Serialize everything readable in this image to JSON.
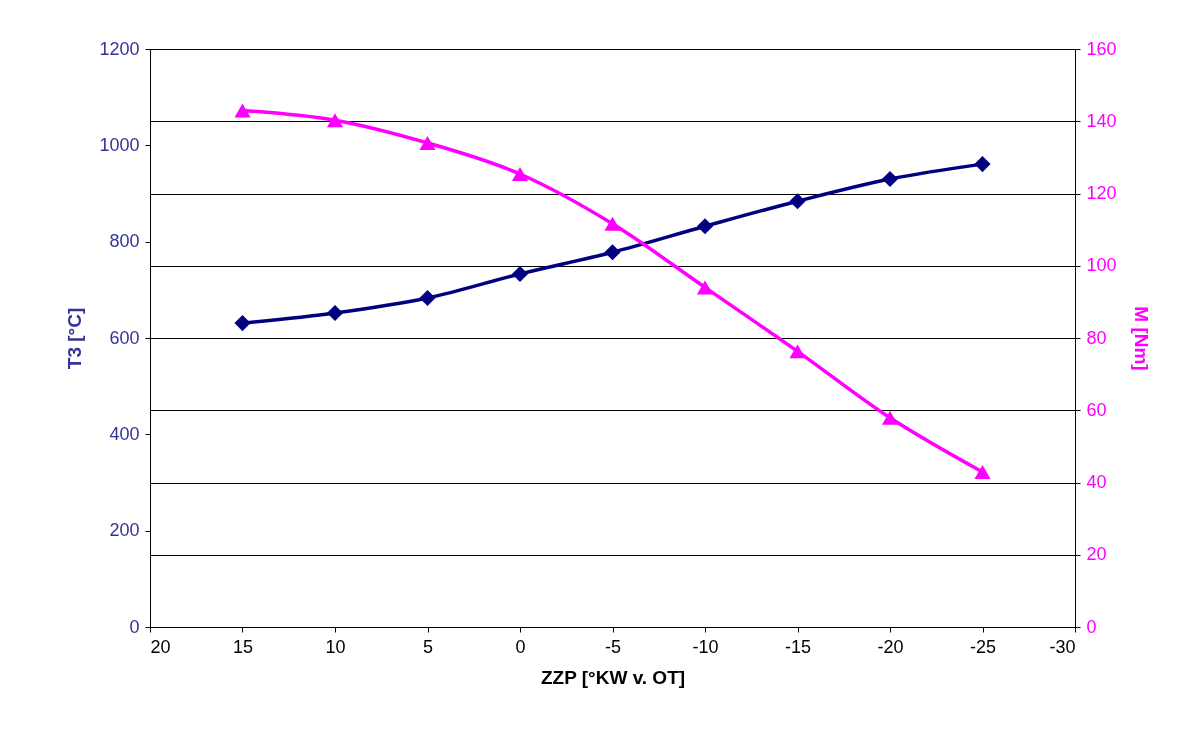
{
  "chart_data": {
    "type": "line",
    "xlabel": "ZZP [°KW v. OT]",
    "ylabel": "T3 [°C]",
    "y2label": "M [Nm]",
    "x": [
      15,
      10,
      5,
      0,
      -5,
      -10,
      -15,
      -20,
      -25
    ],
    "xlim": [
      20,
      -30
    ],
    "xticks": [
      20,
      15,
      10,
      5,
      0,
      -5,
      -10,
      -15,
      -20,
      -25,
      -30
    ],
    "ylim": [
      0,
      1200
    ],
    "yticks": [
      0,
      200,
      400,
      600,
      800,
      1000,
      1200
    ],
    "y2lim": [
      0,
      160
    ],
    "y2ticks": [
      0,
      20,
      40,
      60,
      80,
      100,
      120,
      140,
      160
    ],
    "grid": "y2",
    "legend": false,
    "series": [
      {
        "color": "#000080",
        "marker": "diamond",
        "values": [
          631,
          652,
          683,
          733,
          778,
          832,
          884,
          930,
          961
        ]
      },
      {
        "color": "#ff00ff",
        "marker": "triangle",
        "axis": "y2",
        "values": [
          143,
          140.3,
          134,
          125.4,
          111.6,
          94,
          76.3,
          57.9,
          42.9
        ]
      }
    ]
  }
}
